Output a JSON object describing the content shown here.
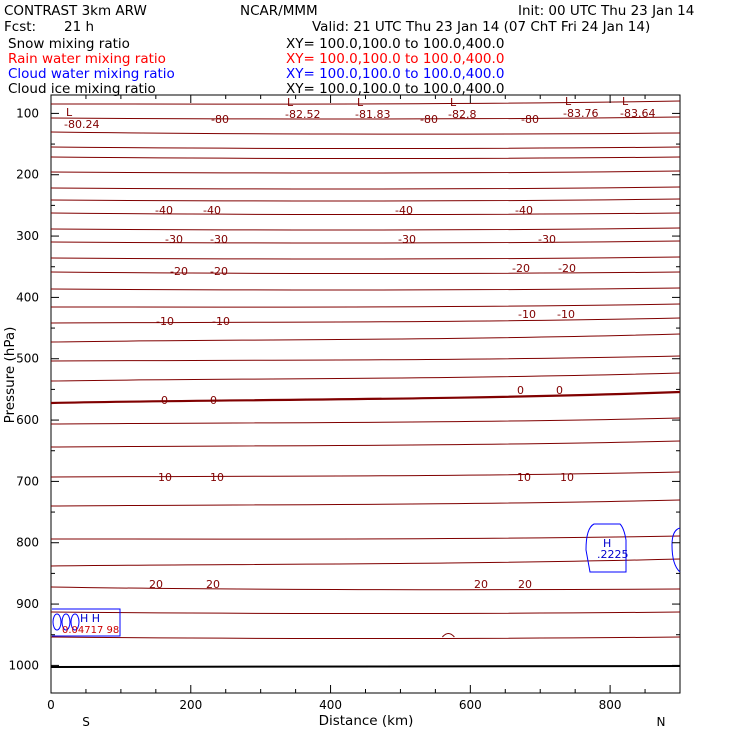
{
  "header": {
    "title": "CONTRAST  3km ARW",
    "center": "NCAR/MMM",
    "init": "Init: 00 UTC Thu 23 Jan 14",
    "fcst_label": "Fcst:",
    "fcst_value": "21 h",
    "valid": "Valid: 21 UTC Thu 23 Jan 14 (07 ChT Fri 24 Jan 14)"
  },
  "legend": [
    {
      "name": "Snow mixing ratio",
      "xy": "XY= 100.0,100.0 to 100.0,400.0",
      "color": "#000000"
    },
    {
      "name": "Rain water mixing ratio",
      "xy": "XY= 100.0,100.0 to 100.0,400.0",
      "color": "#ff0000"
    },
    {
      "name": "Cloud water mixing ratio",
      "xy": "XY= 100.0,100.0 to 100.0,400.0",
      "color": "#0000ff"
    },
    {
      "name": "Cloud ice mixing ratio",
      "xy": "XY= 100.0,100.0 to 100.0,400.0",
      "color": "#000000"
    }
  ],
  "chart_data": {
    "type": "contour-cross-section",
    "xlabel": "Distance (km)",
    "ylabel": "Pressure (hPa)",
    "xlim": [
      0,
      900
    ],
    "ylim": [
      1045,
      70
    ],
    "x_ticks": [
      "0",
      "200",
      "400",
      "600",
      "800"
    ],
    "y_ticks": [
      "100",
      "200",
      "300",
      "400",
      "500",
      "600",
      "700",
      "800",
      "900",
      "1000"
    ],
    "left_end": "S",
    "right_end": "N",
    "temperature_contour_color": "#800000",
    "temperature_contour_labels": [
      "-40",
      "-30",
      "-20",
      "-10",
      "0",
      "10",
      "20"
    ],
    "low_centers": [
      {
        "letter": "L",
        "value": "-80.24"
      },
      {
        "letter": "L",
        "value": "-82.52"
      },
      {
        "letter": "L",
        "value": "-81.83"
      },
      {
        "letter": "L",
        "value": "-82.8"
      },
      {
        "letter": "L",
        "value": "-83.76"
      },
      {
        "letter": "L",
        "value": "-83.64"
      }
    ],
    "upper_contour_label": "-80",
    "high_centers": [
      {
        "letter": "H",
        "value": ".2225",
        "color": "#0000cc"
      },
      {
        "letter": "H H",
        "value": "0.04717 98",
        "color": "#cc0000"
      }
    ]
  }
}
